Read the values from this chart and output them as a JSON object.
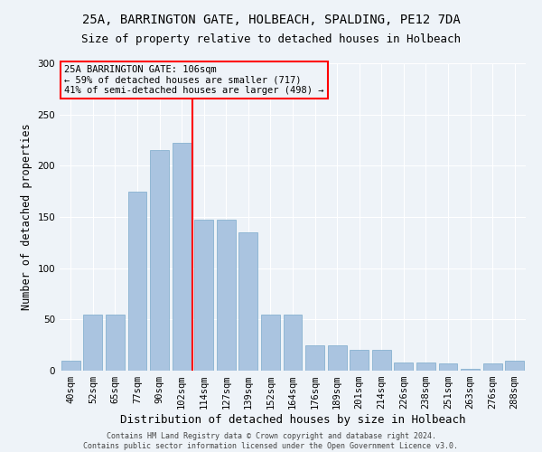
{
  "title1": "25A, BARRINGTON GATE, HOLBEACH, SPALDING, PE12 7DA",
  "title2": "Size of property relative to detached houses in Holbeach",
  "xlabel": "Distribution of detached houses by size in Holbeach",
  "ylabel": "Number of detached properties",
  "footer1": "Contains HM Land Registry data © Crown copyright and database right 2024.",
  "footer2": "Contains public sector information licensed under the Open Government Licence v3.0.",
  "bar_labels": [
    "40sqm",
    "52sqm",
    "65sqm",
    "77sqm",
    "90sqm",
    "102sqm",
    "114sqm",
    "127sqm",
    "139sqm",
    "152sqm",
    "164sqm",
    "176sqm",
    "189sqm",
    "201sqm",
    "214sqm",
    "226sqm",
    "238sqm",
    "251sqm",
    "263sqm",
    "276sqm",
    "288sqm"
  ],
  "bar_values": [
    10,
    55,
    55,
    175,
    215,
    222,
    147,
    147,
    135,
    55,
    55,
    25,
    25,
    20,
    20,
    8,
    8,
    7,
    2,
    7,
    10
  ],
  "bar_color": "#aac4e0",
  "bar_edge_color": "#7aaacb",
  "property_line_x": 5.5,
  "annotation_title": "25A BARRINGTON GATE: 106sqm",
  "annotation_line1": "← 59% of detached houses are smaller (717)",
  "annotation_line2": "41% of semi-detached houses are larger (498) →",
  "ylim": [
    0,
    300
  ],
  "yticks": [
    0,
    50,
    100,
    150,
    200,
    250,
    300
  ],
  "bg_color": "#eef3f8",
  "grid_color": "#ffffff",
  "title_fontsize": 10,
  "subtitle_fontsize": 9,
  "axis_label_fontsize": 8.5,
  "tick_fontsize": 7.5,
  "annotation_fontsize": 7.5,
  "footer_fontsize": 6
}
